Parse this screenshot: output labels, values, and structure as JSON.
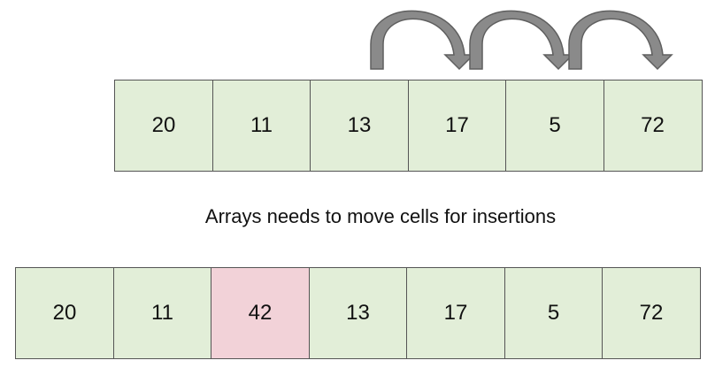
{
  "top_array": {
    "cells": [
      "20",
      "11",
      "13",
      "17",
      "5",
      "72"
    ]
  },
  "caption": "Arrays needs to move cells for insertions",
  "bottom_array": {
    "cells": [
      "20",
      "11",
      "42",
      "13",
      "17",
      "5",
      "72"
    ],
    "inserted_index": 2
  },
  "colors": {
    "cell_fill": "#e2eed8",
    "inserted_fill": "#f2d2d8",
    "arrow_fill": "#8a8a8a",
    "border": "#555555"
  },
  "icons": [
    "curved-shift-arrow-icon",
    "curved-shift-arrow-icon",
    "curved-shift-arrow-icon"
  ]
}
